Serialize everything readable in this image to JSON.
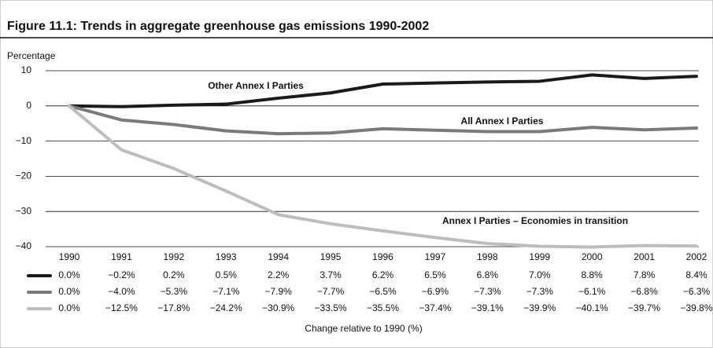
{
  "chart_data": {
    "type": "line",
    "title": "Figure 11.1: Trends in aggregate greenhouse gas emissions 1990-2002",
    "y_label": "Percentage",
    "x_label": "Change relative to 1990 (%)",
    "categories": [
      "1990",
      "1991",
      "1992",
      "1993",
      "1994",
      "1995",
      "1996",
      "1997",
      "1998",
      "1999",
      "2000",
      "2001",
      "2002"
    ],
    "ylim": [
      -40,
      10
    ],
    "yticks": [
      {
        "value": 10,
        "label": "10"
      },
      0,
      {
        "value": -10,
        "label": "−10"
      },
      {
        "value": -20,
        "label": "−20"
      },
      {
        "value": -30,
        "label": "−30"
      },
      {
        "value": -40,
        "label": "−40"
      }
    ],
    "grid": true,
    "series": [
      {
        "name": "Other Annex I Parties",
        "color": "#1a1a1a",
        "values": [
          0.0,
          -0.2,
          0.2,
          0.5,
          2.2,
          3.7,
          6.2,
          6.5,
          6.8,
          7.0,
          8.8,
          7.8,
          8.4
        ],
        "value_labels": [
          "0.0%",
          "−0.2%",
          "0.2%",
          "0.5%",
          "2.2%",
          "3.7%",
          "6.2%",
          "6.5%",
          "6.8%",
          "7.0%",
          "8.8%",
          "7.8%",
          "8.4%"
        ]
      },
      {
        "name": "All Annex I Parties",
        "color": "#7a7a7a",
        "values": [
          0.0,
          -4.0,
          -5.3,
          -7.1,
          -7.9,
          -7.7,
          -6.5,
          -6.9,
          -7.3,
          -7.3,
          -6.1,
          -6.8,
          -6.3
        ],
        "value_labels": [
          "0.0%",
          "−4.0%",
          "−5.3%",
          "−7.1%",
          "−7.9%",
          "−7.7%",
          "−6.5%",
          "−6.9%",
          "−7.3%",
          "−7.3%",
          "−6.1%",
          "−6.8%",
          "−6.3%"
        ]
      },
      {
        "name": "Annex I Parties – Economies in transition",
        "color": "#bdbdbd",
        "values": [
          0.0,
          -12.5,
          -17.8,
          -24.2,
          -30.9,
          -33.5,
          -35.5,
          -37.4,
          -39.1,
          -39.9,
          -40.1,
          -39.7,
          -39.8
        ],
        "value_labels": [
          "0.0%",
          "−12.5%",
          "−17.8%",
          "−24.2%",
          "−30.9%",
          "−33.5%",
          "−35.5%",
          "−37.4%",
          "−39.1%",
          "−39.9%",
          "−40.1%",
          "−39.7%",
          "−39.8%"
        ]
      }
    ]
  }
}
